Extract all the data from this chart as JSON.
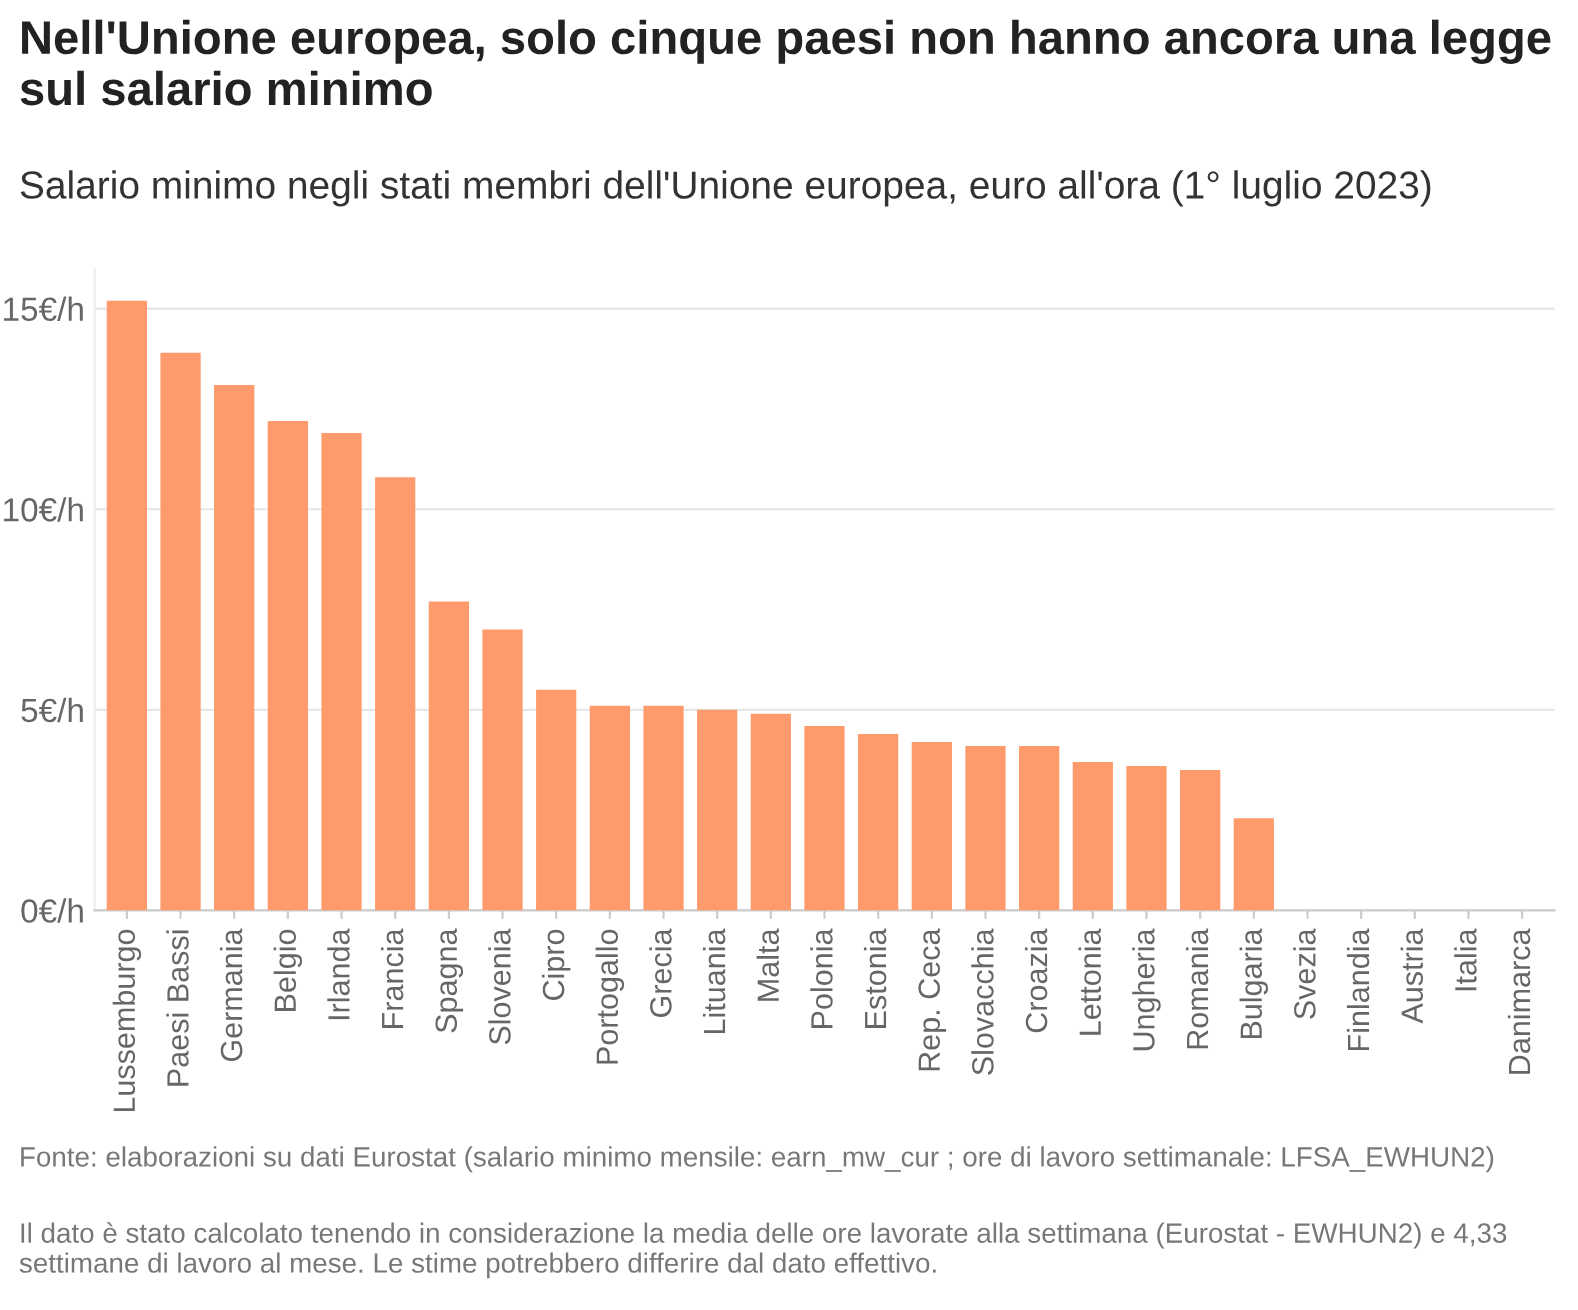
{
  "chart_data": {
    "type": "bar",
    "title": "Nell'Unione europea, solo cinque paesi non hanno ancora una legge sul salario minimo",
    "subtitle": "Salario minimo negli stati membri dell'Unione europea, euro all'ora (1° luglio 2023)",
    "categories": [
      "Lussemburgo",
      "Paesi Bassi",
      "Germania",
      "Belgio",
      "Irlanda",
      "Francia",
      "Spagna",
      "Slovenia",
      "Cipro",
      "Portogallo",
      "Grecia",
      "Lituania",
      "Malta",
      "Polonia",
      "Estonia",
      "Rep. Ceca",
      "Slovacchia",
      "Croazia",
      "Lettonia",
      "Ungheria",
      "Romania",
      "Bulgaria",
      "Svezia",
      "Finlandia",
      "Austria",
      "Italia",
      "Danimarca"
    ],
    "values": [
      15.2,
      13.9,
      13.1,
      12.2,
      11.9,
      10.8,
      7.7,
      7.0,
      5.5,
      5.1,
      5.1,
      5.0,
      4.9,
      4.6,
      4.4,
      4.2,
      4.1,
      4.1,
      3.7,
      3.6,
      3.5,
      2.3,
      null,
      null,
      null,
      null,
      null
    ],
    "color": "#ff9a6c",
    "ylim": [
      0,
      16
    ],
    "yticks": [
      {
        "value": 0,
        "label": "0€/h"
      },
      {
        "value": 5,
        "label": "5€/h"
      },
      {
        "value": 10,
        "label": "10€/h"
      },
      {
        "value": 15,
        "label": "15€/h"
      }
    ],
    "grid": "y",
    "annotations": [
      "Fonte: elaborazioni su dati Eurostat (salario minimo mensile: earn_mw_cur ; ore di lavoro settimanale: LFSA_EWHUN2)",
      "Il dato è stato calcolato tenendo in considerazione la media delle ore lavorate alla settimana (Eurostat - EWHUN2) e 4,33 settimane di lavoro al mese. Le stime potrebbero differire dal dato effettivo."
    ]
  }
}
